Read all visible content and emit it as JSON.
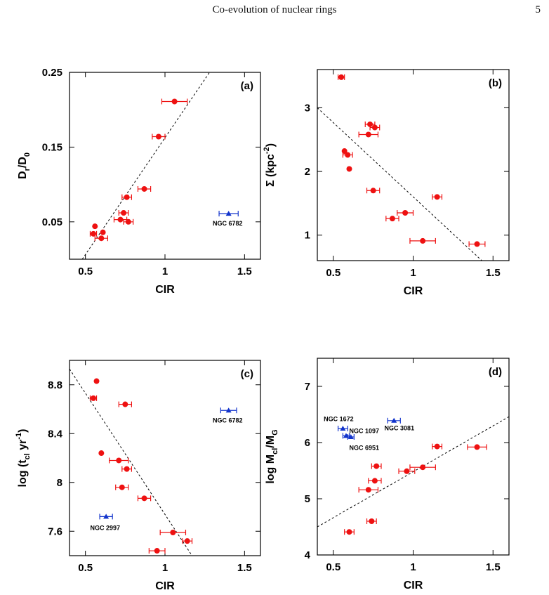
{
  "header": {
    "title": "Co-evolution of nuclear rings",
    "page_number": "5"
  },
  "colors": {
    "data": "#ee1111",
    "outlier": "#1133cc",
    "axis": "#000000"
  },
  "chart_data": [
    {
      "id": "a",
      "type": "scatter",
      "panel_label": "(a)",
      "xlabel": "CIR",
      "ylabel": {
        "main": "D",
        "sub1": "r",
        "mid": "/D",
        "sub2": "0"
      },
      "xlim": [
        0.4,
        1.6
      ],
      "ylim": [
        0.0,
        0.25
      ],
      "xticks": [
        0.5,
        1,
        1.5
      ],
      "xtick_labels": [
        "0.5",
        "1",
        "1.5"
      ],
      "yticks": [
        0.05,
        0.15,
        0.25
      ],
      "ytick_labels": [
        "0.05",
        "0.15",
        "0.25"
      ],
      "fit_line": [
        [
          0.48,
          0.0
        ],
        [
          1.28,
          0.25
        ]
      ],
      "points": [
        {
          "x": 0.55,
          "y": 0.034,
          "xerr": 0.02
        },
        {
          "x": 0.56,
          "y": 0.044,
          "xerr": 0.0
        },
        {
          "x": 0.6,
          "y": 0.028,
          "xerr": 0.04
        },
        {
          "x": 0.61,
          "y": 0.036,
          "xerr": 0.0
        },
        {
          "x": 0.72,
          "y": 0.053,
          "xerr": 0.04
        },
        {
          "x": 0.74,
          "y": 0.062,
          "xerr": 0.03
        },
        {
          "x": 0.77,
          "y": 0.05,
          "xerr": 0.03
        },
        {
          "x": 0.76,
          "y": 0.083,
          "xerr": 0.03
        },
        {
          "x": 0.87,
          "y": 0.094,
          "xerr": 0.04
        },
        {
          "x": 0.96,
          "y": 0.164,
          "xerr": 0.04
        },
        {
          "x": 1.06,
          "y": 0.211,
          "xerr": 0.08
        }
      ],
      "outliers": [
        {
          "x": 1.4,
          "y": 0.061,
          "xerr": 0.06,
          "label": "NGC 6782",
          "label_pos": [
            1.3,
            0.045
          ]
        }
      ]
    },
    {
      "id": "b",
      "type": "scatter",
      "panel_label": "(b)",
      "xlabel": "CIR",
      "ylabel": {
        "main": "Σ (kpc",
        "sup": "-2",
        "tail": ")"
      },
      "xlim": [
        0.4,
        1.6
      ],
      "ylim": [
        0.6,
        3.6
      ],
      "xticks": [
        0.5,
        1,
        1.5
      ],
      "xtick_labels": [
        "0.5",
        "1",
        "1.5"
      ],
      "yticks": [
        1,
        2,
        3
      ],
      "ytick_labels": [
        "1",
        "2",
        "3"
      ],
      "fit_line": [
        [
          0.4,
          3.0
        ],
        [
          1.43,
          0.6
        ]
      ],
      "points": [
        {
          "x": 0.55,
          "y": 3.48,
          "xerr": 0.02
        },
        {
          "x": 0.57,
          "y": 2.32,
          "xerr": 0.0
        },
        {
          "x": 0.59,
          "y": 2.26,
          "xerr": 0.03
        },
        {
          "x": 0.6,
          "y": 2.04,
          "xerr": 0.0
        },
        {
          "x": 0.73,
          "y": 2.74,
          "xerr": 0.03
        },
        {
          "x": 0.76,
          "y": 2.69,
          "xerr": 0.03
        },
        {
          "x": 0.72,
          "y": 2.58,
          "xerr": 0.06
        },
        {
          "x": 0.75,
          "y": 1.7,
          "xerr": 0.04
        },
        {
          "x": 0.87,
          "y": 1.26,
          "xerr": 0.04
        },
        {
          "x": 0.95,
          "y": 1.35,
          "xerr": 0.05
        },
        {
          "x": 1.15,
          "y": 1.6,
          "xerr": 0.03
        },
        {
          "x": 1.06,
          "y": 0.91,
          "xerr": 0.08
        },
        {
          "x": 1.4,
          "y": 0.86,
          "xerr": 0.05
        }
      ],
      "outliers": []
    },
    {
      "id": "c",
      "type": "scatter",
      "panel_label": "(c)",
      "xlabel": "CIR",
      "ylabel": {
        "main": "log (t",
        "sub": "cl",
        "mid": " yr",
        "sup": "-1",
        "tail": ")"
      },
      "xlim": [
        0.4,
        1.6
      ],
      "ylim": [
        7.4,
        9.0
      ],
      "xticks": [
        0.5,
        1,
        1.5
      ],
      "xtick_labels": [
        "0.5",
        "1",
        "1.5"
      ],
      "yticks": [
        7.6,
        8,
        8.4,
        8.8
      ],
      "ytick_labels": [
        "7.6",
        "8",
        "8.4",
        "8.8"
      ],
      "fit_line": [
        [
          0.4,
          8.93
        ],
        [
          1.17,
          7.4
        ]
      ],
      "points": [
        {
          "x": 0.57,
          "y": 8.83,
          "xerr": 0.0
        },
        {
          "x": 0.55,
          "y": 8.69,
          "xerr": 0.02
        },
        {
          "x": 0.75,
          "y": 8.64,
          "xerr": 0.04
        },
        {
          "x": 0.6,
          "y": 8.24,
          "xerr": 0.0
        },
        {
          "x": 0.71,
          "y": 8.18,
          "xerr": 0.06
        },
        {
          "x": 0.76,
          "y": 8.11,
          "xerr": 0.03
        },
        {
          "x": 0.73,
          "y": 7.96,
          "xerr": 0.04
        },
        {
          "x": 0.87,
          "y": 7.87,
          "xerr": 0.04
        },
        {
          "x": 1.05,
          "y": 7.59,
          "xerr": 0.08
        },
        {
          "x": 1.14,
          "y": 7.52,
          "xerr": 0.03
        },
        {
          "x": 0.95,
          "y": 7.44,
          "xerr": 0.05
        }
      ],
      "outliers": [
        {
          "x": 1.4,
          "y": 8.59,
          "xerr": 0.05,
          "label": "NGC 6782",
          "label_pos": [
            1.3,
            8.49
          ]
        },
        {
          "x": 0.63,
          "y": 7.72,
          "xerr": 0.04,
          "label": "NGC 2997",
          "label_pos": [
            0.53,
            7.61
          ]
        }
      ]
    },
    {
      "id": "d",
      "type": "scatter",
      "panel_label": "(d)",
      "xlabel": "CIR",
      "ylabel": {
        "main": "log M",
        "sub1": "cl",
        "mid": "/M",
        "sub2": "G"
      },
      "xlim": [
        0.4,
        1.6
      ],
      "ylim": [
        4.0,
        7.5
      ],
      "xticks": [
        0.5,
        1,
        1.5
      ],
      "xtick_labels": [
        "0.5",
        "1",
        "1.5"
      ],
      "yticks": [
        4,
        5,
        6,
        7
      ],
      "ytick_labels": [
        "4",
        "5",
        "6",
        "7"
      ],
      "fit_line": [
        [
          0.4,
          4.5
        ],
        [
          1.6,
          6.46
        ]
      ],
      "points": [
        {
          "x": 0.6,
          "y": 4.41,
          "xerr": 0.03
        },
        {
          "x": 0.74,
          "y": 4.6,
          "xerr": 0.03
        },
        {
          "x": 0.72,
          "y": 5.16,
          "xerr": 0.06
        },
        {
          "x": 0.76,
          "y": 5.32,
          "xerr": 0.04
        },
        {
          "x": 0.77,
          "y": 5.58,
          "xerr": 0.03
        },
        {
          "x": 0.96,
          "y": 5.49,
          "xerr": 0.05
        },
        {
          "x": 1.06,
          "y": 5.56,
          "xerr": 0.08
        },
        {
          "x": 1.15,
          "y": 5.93,
          "xerr": 0.03
        },
        {
          "x": 1.4,
          "y": 5.92,
          "xerr": 0.06
        }
      ],
      "outliers": [
        {
          "x": 0.56,
          "y": 6.25,
          "xerr": 0.03,
          "label": "NGC 1672",
          "label_pos": [
            0.44,
            6.38
          ]
        },
        {
          "x": 0.58,
          "y": 6.12,
          "xerr": 0.02,
          "label": "NGC 1097",
          "label_pos": [
            0.6,
            6.17
          ]
        },
        {
          "x": 0.61,
          "y": 6.1,
          "xerr": 0.02,
          "label": "NGC 6951",
          "label_pos": [
            0.6,
            5.87
          ]
        },
        {
          "x": 0.88,
          "y": 6.39,
          "xerr": 0.04,
          "label": "NGC 3081",
          "label_pos": [
            0.82,
            6.22
          ]
        }
      ]
    }
  ]
}
